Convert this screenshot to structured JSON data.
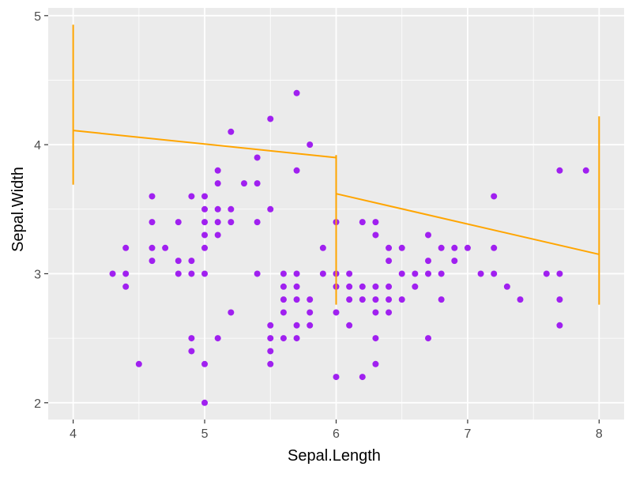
{
  "chart_data": {
    "type": "scatter",
    "xlabel": "Sepal.Length",
    "ylabel": "Sepal.Width",
    "xlim": [
      3.81,
      8.19
    ],
    "ylim": [
      1.87,
      5.06
    ],
    "x_ticks": [
      4,
      5,
      6,
      7,
      8
    ],
    "y_ticks": [
      2,
      3,
      4,
      5
    ],
    "grid": true,
    "colors": {
      "panel": "#ebebeb",
      "grid": "#ffffff",
      "points": "#a020f0",
      "segments": "#ffa500",
      "tick": "#333333"
    },
    "points": [
      [
        4.3,
        3.0
      ],
      [
        4.4,
        3.2
      ],
      [
        4.4,
        3.0
      ],
      [
        4.4,
        2.9
      ],
      [
        4.5,
        2.3
      ],
      [
        4.6,
        3.6
      ],
      [
        4.6,
        3.4
      ],
      [
        4.6,
        3.2
      ],
      [
        4.6,
        3.1
      ],
      [
        4.7,
        3.2
      ],
      [
        4.8,
        3.4
      ],
      [
        4.8,
        3.1
      ],
      [
        4.8,
        3.0
      ],
      [
        4.9,
        3.6
      ],
      [
        4.9,
        3.1
      ],
      [
        4.9,
        3.0
      ],
      [
        4.9,
        2.5
      ],
      [
        4.9,
        2.4
      ],
      [
        5.0,
        3.6
      ],
      [
        5.0,
        3.5
      ],
      [
        5.0,
        3.4
      ],
      [
        5.0,
        3.3
      ],
      [
        5.0,
        3.2
      ],
      [
        5.0,
        3.0
      ],
      [
        5.0,
        2.3
      ],
      [
        5.0,
        2.0
      ],
      [
        5.1,
        3.8
      ],
      [
        5.1,
        3.7
      ],
      [
        5.1,
        3.5
      ],
      [
        5.1,
        3.4
      ],
      [
        5.1,
        3.3
      ],
      [
        5.1,
        2.5
      ],
      [
        5.2,
        4.1
      ],
      [
        5.2,
        3.5
      ],
      [
        5.2,
        3.4
      ],
      [
        5.2,
        2.7
      ],
      [
        5.3,
        3.7
      ],
      [
        5.4,
        3.9
      ],
      [
        5.4,
        3.7
      ],
      [
        5.4,
        3.4
      ],
      [
        5.4,
        3.0
      ],
      [
        5.5,
        4.2
      ],
      [
        5.5,
        3.5
      ],
      [
        5.5,
        2.6
      ],
      [
        5.5,
        2.5
      ],
      [
        5.5,
        2.4
      ],
      [
        5.5,
        2.3
      ],
      [
        5.6,
        3.0
      ],
      [
        5.6,
        2.9
      ],
      [
        5.6,
        2.8
      ],
      [
        5.6,
        2.7
      ],
      [
        5.6,
        2.5
      ],
      [
        5.7,
        4.4
      ],
      [
        5.7,
        3.8
      ],
      [
        5.7,
        3.0
      ],
      [
        5.7,
        2.9
      ],
      [
        5.7,
        2.8
      ],
      [
        5.7,
        2.6
      ],
      [
        5.7,
        2.5
      ],
      [
        5.8,
        4.0
      ],
      [
        5.8,
        2.8
      ],
      [
        5.8,
        2.7
      ],
      [
        5.8,
        2.6
      ],
      [
        5.9,
        3.2
      ],
      [
        5.9,
        3.0
      ],
      [
        6.0,
        3.4
      ],
      [
        6.0,
        3.0
      ],
      [
        6.0,
        2.9
      ],
      [
        6.0,
        2.7
      ],
      [
        6.0,
        2.2
      ],
      [
        6.1,
        3.0
      ],
      [
        6.1,
        2.9
      ],
      [
        6.1,
        2.8
      ],
      [
        6.1,
        2.6
      ],
      [
        6.2,
        3.4
      ],
      [
        6.2,
        2.9
      ],
      [
        6.2,
        2.8
      ],
      [
        6.2,
        2.2
      ],
      [
        6.3,
        3.4
      ],
      [
        6.3,
        3.3
      ],
      [
        6.3,
        2.9
      ],
      [
        6.3,
        2.8
      ],
      [
        6.3,
        2.7
      ],
      [
        6.3,
        2.5
      ],
      [
        6.3,
        2.3
      ],
      [
        6.4,
        3.2
      ],
      [
        6.4,
        3.1
      ],
      [
        6.4,
        2.9
      ],
      [
        6.4,
        2.8
      ],
      [
        6.4,
        2.7
      ],
      [
        6.5,
        3.2
      ],
      [
        6.5,
        3.0
      ],
      [
        6.5,
        2.8
      ],
      [
        6.6,
        3.0
      ],
      [
        6.6,
        2.9
      ],
      [
        6.7,
        3.3
      ],
      [
        6.7,
        3.1
      ],
      [
        6.7,
        3.0
      ],
      [
        6.7,
        2.5
      ],
      [
        6.8,
        3.2
      ],
      [
        6.8,
        3.0
      ],
      [
        6.8,
        2.8
      ],
      [
        6.9,
        3.2
      ],
      [
        6.9,
        3.1
      ],
      [
        7.0,
        3.2
      ],
      [
        7.1,
        3.0
      ],
      [
        7.2,
        3.6
      ],
      [
        7.2,
        3.2
      ],
      [
        7.2,
        3.0
      ],
      [
        7.3,
        2.9
      ],
      [
        7.4,
        2.8
      ],
      [
        7.6,
        3.0
      ],
      [
        7.7,
        3.8
      ],
      [
        7.7,
        3.0
      ],
      [
        7.7,
        2.8
      ],
      [
        7.7,
        2.6
      ],
      [
        7.9,
        3.8
      ]
    ],
    "segments": [
      [
        4.0,
        4.11,
        6.0,
        3.9
      ],
      [
        6.0,
        3.62,
        8.0,
        3.15
      ],
      [
        4.0,
        3.69,
        4.0,
        4.93
      ],
      [
        6.0,
        2.76,
        6.0,
        3.92
      ],
      [
        8.0,
        2.76,
        8.0,
        4.22
      ]
    ]
  }
}
